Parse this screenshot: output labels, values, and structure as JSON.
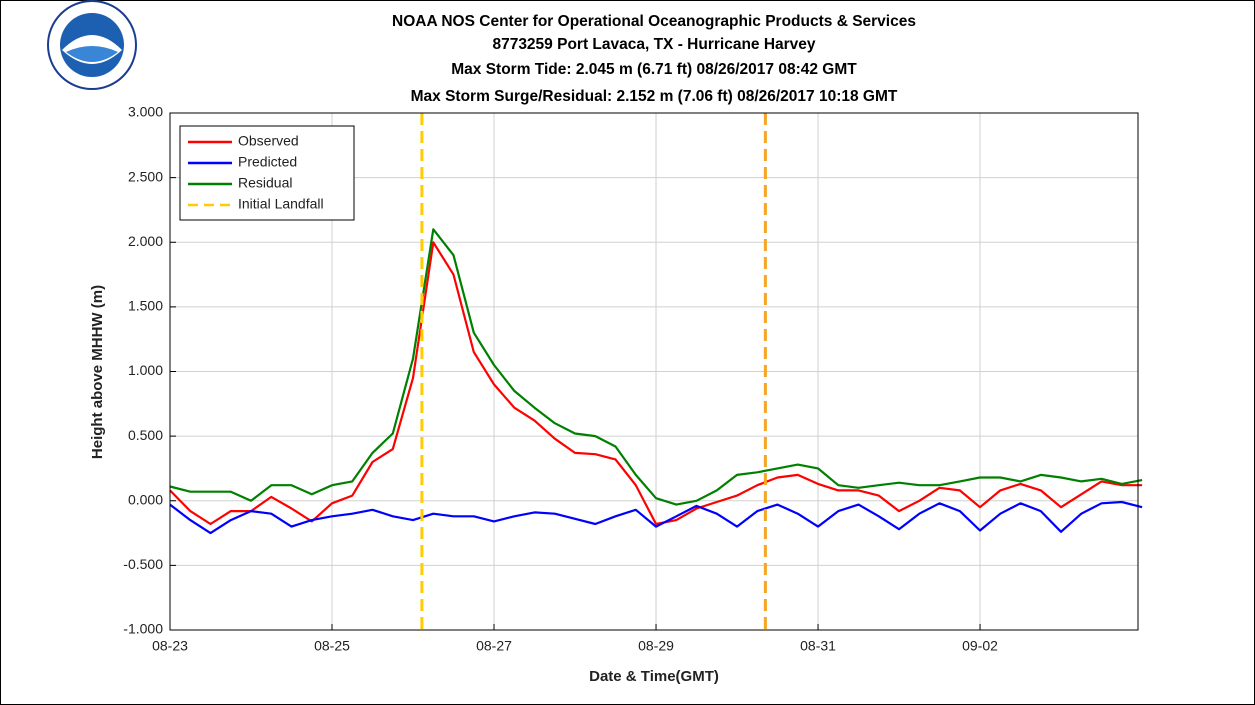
{
  "chart_data": {
    "type": "line",
    "title": "NOAA NOS Center for Operational Oceanographic Products & Services",
    "subtitle": [
      "8773259 Port Lavaca, TX - Hurricane Harvey",
      "Max Storm Tide: 2.045 m (6.71 ft) 08/26/2017 08:42 GMT",
      "Max Storm Surge/Residual: 2.152 m (7.06 ft) 08/26/2017 10:18 GMT"
    ],
    "x_label": "Date & Time(GMT)",
    "y_label": "Height above MHHW (m)",
    "x": [
      0,
      0.25,
      0.5,
      0.75,
      1,
      1.25,
      1.5,
      1.75,
      2,
      2.25,
      2.5,
      2.75,
      3,
      3.25,
      3.5,
      3.75,
      4,
      4.25,
      4.5,
      4.75,
      5,
      5.25,
      5.5,
      5.75,
      6,
      6.25,
      6.5,
      6.75,
      7,
      7.25,
      7.5,
      7.75,
      8,
      8.25,
      8.5,
      8.75,
      9,
      9.25,
      9.5,
      9.75,
      10,
      10.25,
      10.5,
      10.75,
      11,
      11.25,
      11.5,
      11.75,
      12
    ],
    "series": [
      {
        "name": "Observed",
        "color": "#ff0000",
        "values": [
          0.08,
          -0.08,
          -0.18,
          -0.08,
          -0.08,
          0.03,
          -0.06,
          -0.16,
          -0.02,
          0.04,
          0.3,
          0.4,
          0.95,
          2.0,
          1.75,
          1.15,
          0.9,
          0.72,
          0.62,
          0.48,
          0.37,
          0.36,
          0.32,
          0.12,
          -0.18,
          -0.15,
          -0.06,
          -0.01,
          0.04,
          0.12,
          0.18,
          0.2,
          0.13,
          0.08,
          0.08,
          0.04,
          -0.08,
          0.0,
          0.1,
          0.08,
          -0.05,
          0.08,
          0.13,
          0.08,
          -0.05,
          0.05,
          0.15,
          0.12,
          0.12
        ]
      },
      {
        "name": "Predicted",
        "color": "#0000ff",
        "values": [
          -0.03,
          -0.15,
          -0.25,
          -0.15,
          -0.08,
          -0.1,
          -0.2,
          -0.15,
          -0.12,
          -0.1,
          -0.07,
          -0.12,
          -0.15,
          -0.1,
          -0.12,
          -0.12,
          -0.16,
          -0.12,
          -0.09,
          -0.1,
          -0.14,
          -0.18,
          -0.12,
          -0.07,
          -0.2,
          -0.12,
          -0.04,
          -0.1,
          -0.2,
          -0.08,
          -0.03,
          -0.1,
          -0.2,
          -0.08,
          -0.03,
          -0.12,
          -0.22,
          -0.1,
          -0.02,
          -0.08,
          -0.23,
          -0.1,
          -0.02,
          -0.08,
          -0.24,
          -0.1,
          -0.02,
          -0.01,
          -0.05
        ]
      },
      {
        "name": "Residual",
        "color": "#008000",
        "values": [
          0.11,
          0.07,
          0.07,
          0.07,
          0.0,
          0.12,
          0.12,
          0.05,
          0.12,
          0.15,
          0.37,
          0.52,
          1.1,
          2.1,
          1.9,
          1.3,
          1.05,
          0.85,
          0.72,
          0.6,
          0.52,
          0.5,
          0.42,
          0.2,
          0.02,
          -0.03,
          0.0,
          0.08,
          0.2,
          0.22,
          0.25,
          0.28,
          0.25,
          0.12,
          0.1,
          0.12,
          0.14,
          0.12,
          0.12,
          0.15,
          0.18,
          0.18,
          0.15,
          0.2,
          0.18,
          0.15,
          0.17,
          0.13,
          0.16
        ]
      }
    ],
    "vlines": [
      {
        "name": "Initial Landfall",
        "x": 3.11,
        "color": "#ffcc00"
      },
      {
        "x": 7.35,
        "color": "#f5a623"
      }
    ],
    "xlim": [
      0,
      11.95
    ],
    "xticks": [
      {
        "value": 0,
        "label": "08-23"
      },
      {
        "value": 2,
        "label": "08-25"
      },
      {
        "value": 4,
        "label": "08-27"
      },
      {
        "value": 6,
        "label": "08-29"
      },
      {
        "value": 8,
        "label": "08-31"
      },
      {
        "value": 10,
        "label": "09-02"
      }
    ],
    "ylim": [
      -1,
      3
    ],
    "yticks": [
      {
        "value": -1,
        "label": "-1.000"
      },
      {
        "value": -0.5,
        "label": "-0.500"
      },
      {
        "value": 0,
        "label": "0.000"
      },
      {
        "value": 0.5,
        "label": "0.500"
      },
      {
        "value": 1,
        "label": "1.000"
      },
      {
        "value": 1.5,
        "label": "1.500"
      },
      {
        "value": 2,
        "label": "2.000"
      },
      {
        "value": 2.5,
        "label": "2.500"
      },
      {
        "value": 3,
        "label": "3.000"
      }
    ],
    "grid": true,
    "legend": "upper left"
  }
}
